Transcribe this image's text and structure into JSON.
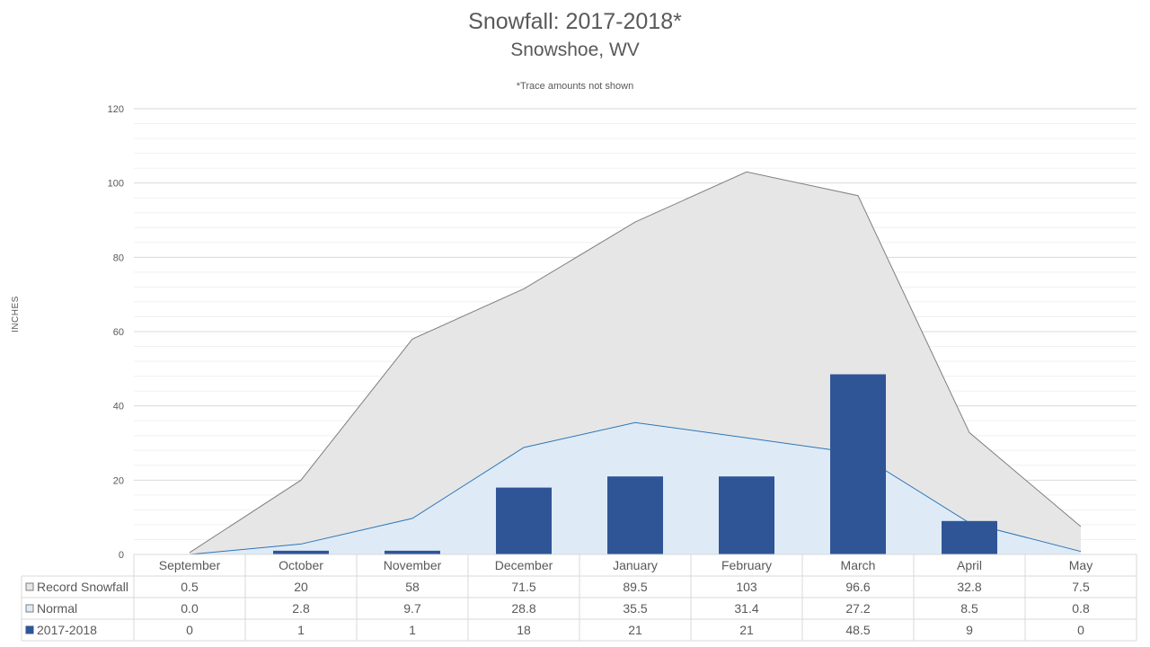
{
  "chart_data": {
    "type": "bar",
    "title": "Snowfall: 2017-2018*",
    "subtitle": "Snowshoe, WV",
    "note": "*Trace amounts not shown",
    "ylabel": "INCHES",
    "xlabel": "",
    "ylim": [
      0,
      120
    ],
    "yticks": [
      "0",
      "20",
      "40",
      "60",
      "80",
      "100",
      "120"
    ],
    "grid": true,
    "legend": "data-table",
    "categories": [
      "September",
      "October",
      "November",
      "December",
      "January",
      "February",
      "March",
      "April",
      "May"
    ],
    "series": [
      {
        "name": "Record Snowfall",
        "type": "area",
        "color": "#e6e6e6",
        "line_color": "#7f7f7f",
        "values": [
          0.5,
          20,
          58,
          71.5,
          89.5,
          103,
          96.6,
          32.8,
          7.5
        ],
        "labels": [
          "0.5",
          "20",
          "58",
          "71.5",
          "89.5",
          "103",
          "96.6",
          "32.8",
          "7.5"
        ]
      },
      {
        "name": "Normal",
        "type": "area",
        "color": "#deebf7",
        "line_color": "#2e75b6",
        "values": [
          0.0,
          2.8,
          9.7,
          28.8,
          35.5,
          31.4,
          27.2,
          8.5,
          0.8
        ],
        "labels": [
          "0.0",
          "2.8",
          "9.7",
          "28.8",
          "35.5",
          "31.4",
          "27.2",
          "8.5",
          "0.8"
        ]
      },
      {
        "name": "2017-2018",
        "type": "bar",
        "color": "#2f5597",
        "line_color": "#2f5597",
        "values": [
          0,
          1,
          1,
          18,
          21,
          21,
          48.5,
          9,
          0
        ],
        "labels": [
          "0",
          "1",
          "1",
          "18",
          "21",
          "21",
          "48.5",
          "9",
          "0"
        ]
      }
    ]
  }
}
